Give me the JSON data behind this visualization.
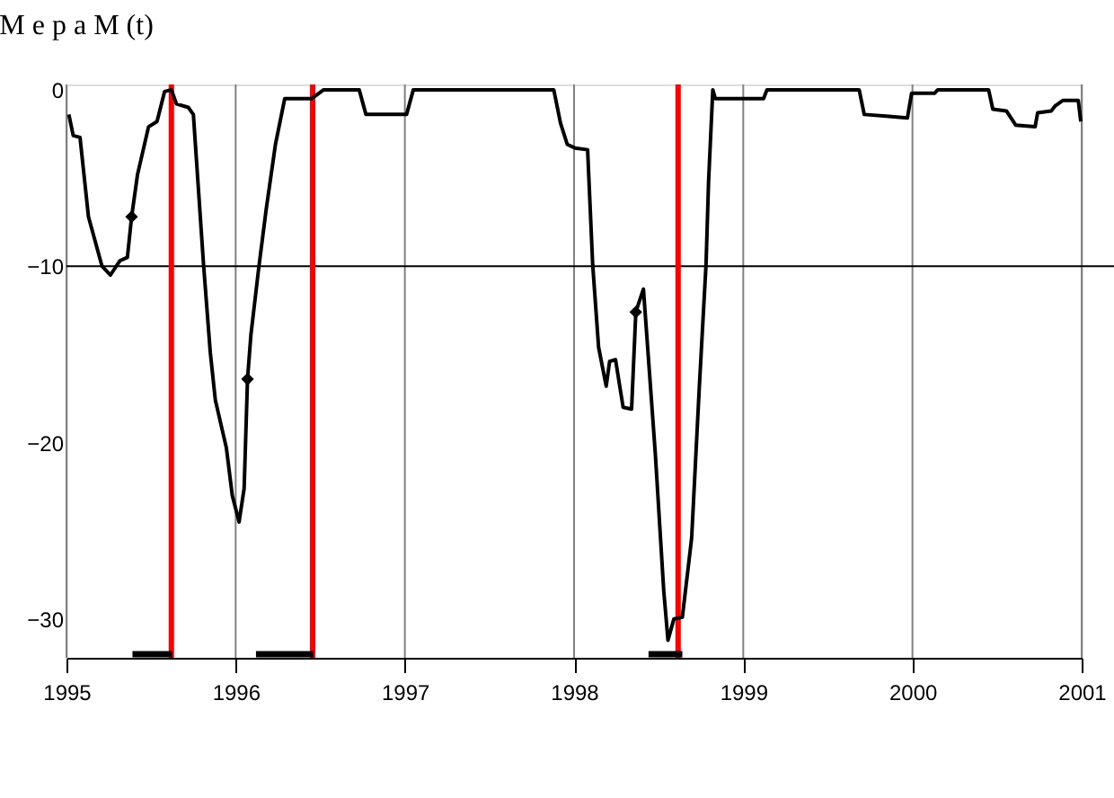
{
  "chart_data": {
    "type": "line",
    "title": "М е р а   M (t)",
    "xlim": [
      1995,
      2001
    ],
    "xticks": [
      1995,
      1996,
      1997,
      1998,
      1999,
      2000,
      2001
    ],
    "ylim": [
      -32.2,
      0.3
    ],
    "yticks": [
      0,
      -10,
      -20,
      -30
    ],
    "grid": "x",
    "series": [
      {
        "type": "line",
        "color": "#000000",
        "line_style": "solid",
        "marker": "none",
        "x": [
          1995.014,
          1995.04,
          1995.08,
          1995.13,
          1995.21,
          1995.26,
          1995.315,
          1995.36,
          1995.385,
          1995.42,
          1995.485,
          1995.535,
          1995.58,
          1995.62,
          1995.65,
          1995.72,
          1995.75,
          1995.81,
          1995.85,
          1995.88,
          1995.945,
          1995.98,
          1996.02,
          1996.05,
          1996.07,
          1996.09,
          1996.135,
          1996.18,
          1996.235,
          1996.29,
          1996.45,
          1996.52,
          1996.73,
          1996.77,
          1997.01,
          1997.05,
          1997.88,
          1997.92,
          1997.96,
          1998.005,
          1998.08,
          1998.11,
          1998.145,
          1998.19,
          1998.21,
          1998.245,
          1998.29,
          1998.34,
          1998.365,
          1998.41,
          1998.48,
          1998.53,
          1998.555,
          1998.59,
          1998.64,
          1998.695,
          1998.74,
          1998.78,
          1998.795,
          1998.82,
          1998.835,
          1999.12,
          1999.14,
          1999.685,
          1999.715,
          1999.845,
          1999.97,
          1999.995,
          2000.13,
          2000.15,
          2000.45,
          2000.475,
          2000.555,
          2000.61,
          2000.725,
          2000.74,
          2000.82,
          2000.845,
          2000.89,
          2000.98,
          2000.995
        ],
        "values": [
          -1.4,
          -2.6,
          -2.7,
          -7.2,
          -10.0,
          -10.5,
          -9.7,
          -9.5,
          -7.2,
          -4.8,
          -2.1,
          -1.8,
          -0.1,
          0,
          -0.8,
          -1.0,
          -1.4,
          -9.9,
          -14.9,
          -17.6,
          -20.3,
          -23.0,
          -24.5,
          -22.6,
          -16.4,
          -13.9,
          -10.2,
          -6.8,
          -3.1,
          -0.5,
          -0.5,
          0,
          0,
          -1.4,
          -1.4,
          0,
          0,
          -1.9,
          -3.1,
          -3.3,
          -3.4,
          -9.9,
          -14.6,
          -16.8,
          -15.4,
          -15.3,
          -18.0,
          -18.1,
          -12.6,
          -11.3,
          -20.6,
          -28.4,
          -31.2,
          -30.0,
          -29.9,
          -25.4,
          -16.9,
          -9.9,
          -5.2,
          0,
          -0.5,
          -0.5,
          0,
          0,
          -1.4,
          -1.5,
          -1.6,
          -0.2,
          -0.2,
          0,
          0,
          -1.1,
          -1.2,
          -2.0,
          -2.1,
          -1.3,
          -1.2,
          -0.9,
          -0.6,
          -0.6,
          -1.8
        ]
      },
      {
        "color": "#000000",
        "line_style": "solid",
        "marker": "none",
        "x": [
          1995.39,
          1995.625,
          1995.9,
          1996.12,
          1996.46,
          1997.5,
          1998.44,
          1998.64
        ],
        "values": [
          -32,
          -32,
          null,
          -32,
          -32,
          null,
          -32,
          -32
        ]
      },
      {
        "type": "scatter",
        "color": "#000000",
        "marker": "diamond",
        "x": [
          1995.385,
          1996.07,
          1998.365
        ],
        "values": [
          -7.2,
          -16.4,
          -12.6
        ]
      }
    ],
    "ref_lines": [
      {
        "axis": "y",
        "value": -10,
        "color": "#000000",
        "line_style": "solid"
      },
      {
        "axis": "x",
        "value": 1995.62,
        "color": "#ff0000",
        "line_style": "solid"
      },
      {
        "axis": "x",
        "value": 1996.455,
        "color": "#ff0000",
        "line_style": "solid"
      },
      {
        "axis": "x",
        "value": 1998.615,
        "color": "#ff0000",
        "line_style": "solid"
      }
    ]
  }
}
